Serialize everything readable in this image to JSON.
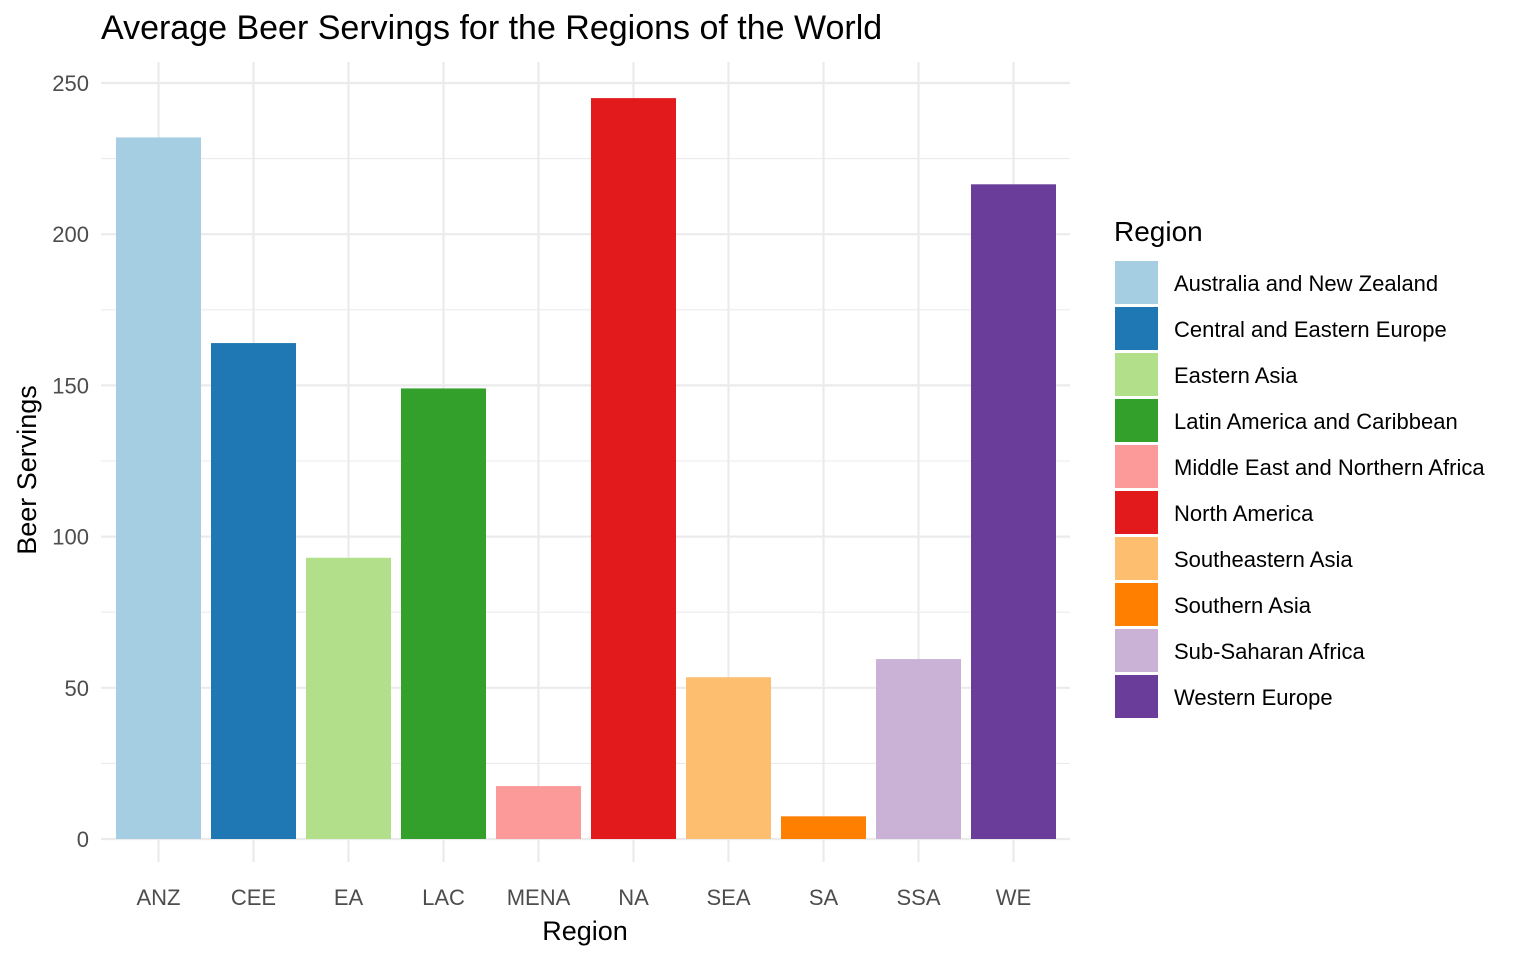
{
  "chart_data": {
    "type": "bar",
    "title": "Average Beer Servings for the Regions of the World",
    "xlabel": "Region",
    "ylabel": "Beer Servings",
    "ylim": [
      0,
      250
    ],
    "yticks": [
      0,
      50,
      100,
      150,
      200,
      250
    ],
    "grid": true,
    "categories": [
      "ANZ",
      "CEE",
      "EA",
      "LAC",
      "MENA",
      "NA",
      "SEA",
      "SA",
      "SSA",
      "WE"
    ],
    "values": [
      232,
      164,
      93,
      149,
      17.5,
      245,
      53.5,
      7.5,
      59.5,
      216.5
    ],
    "colors": [
      "#a6cee3",
      "#1f78b4",
      "#b2df8a",
      "#33a02c",
      "#fb9a99",
      "#e31a1c",
      "#fdbf6f",
      "#ff7f00",
      "#cab2d6",
      "#6a3d9a"
    ],
    "legend": {
      "title": "Region",
      "position": "right",
      "entries": [
        "Australia and New Zealand",
        "Central and Eastern Europe",
        "Eastern Asia",
        "Latin America and Caribbean",
        "Middle East and Northern Africa",
        "North America",
        "Southeastern Asia",
        "Southern Asia",
        "Sub-Saharan Africa",
        "Western Europe"
      ]
    }
  }
}
